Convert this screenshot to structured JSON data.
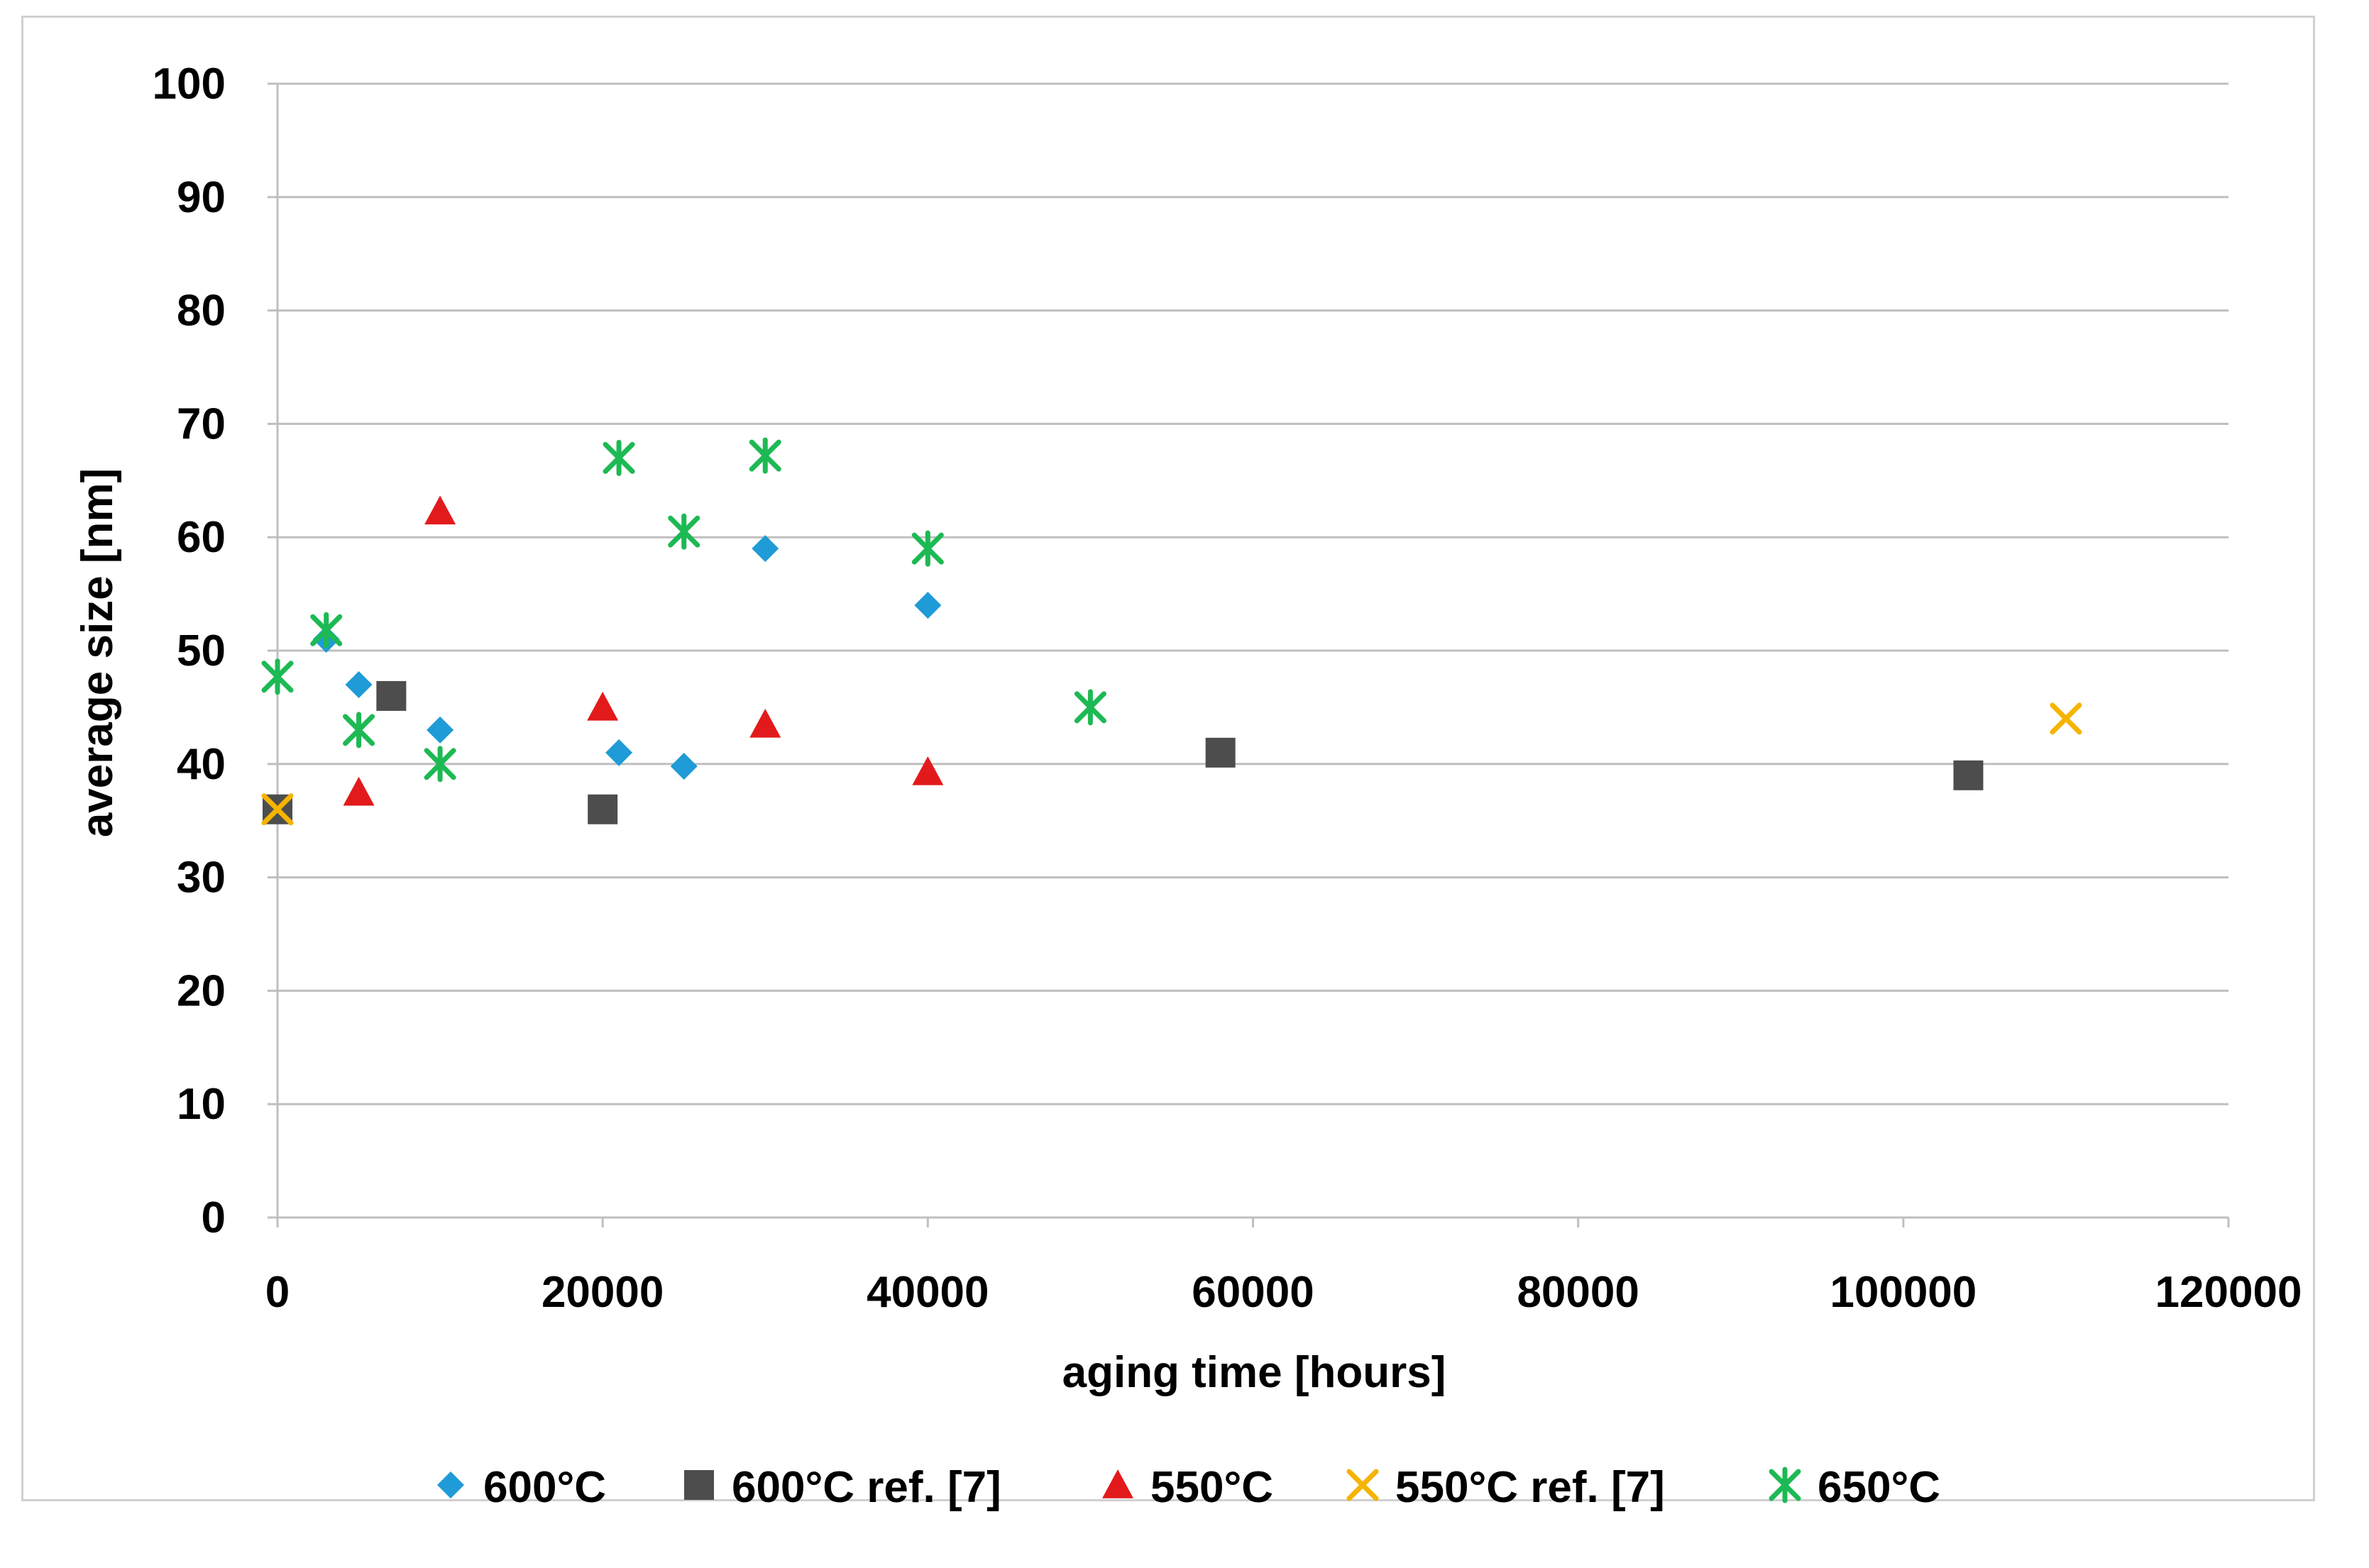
{
  "chart_data": {
    "type": "scatter",
    "title": "",
    "xlabel": "aging time [hours]",
    "ylabel": "average size [nm]",
    "xlim": [
      0,
      120000
    ],
    "ylim": [
      0,
      100
    ],
    "xticks": [
      "0",
      "20000",
      "40000",
      "60000",
      "80000",
      "100000",
      "120000"
    ],
    "yticks": [
      "0",
      "10",
      "20",
      "30",
      "40",
      "50",
      "60",
      "70",
      "80",
      "90",
      "100"
    ],
    "grid": "horizontal",
    "legend_position": "bottom",
    "series": [
      {
        "name": "600°C",
        "marker": "diamond",
        "color": "#1f9bd7",
        "points": [
          [
            0,
            36
          ],
          [
            3000,
            51
          ],
          [
            5000,
            47
          ],
          [
            10000,
            43
          ],
          [
            21000,
            41
          ],
          [
            25000,
            39.8
          ],
          [
            30000,
            59
          ],
          [
            40000,
            54
          ]
        ]
      },
      {
        "name": "600°C ref. [7]",
        "marker": "square",
        "color": "#4d4d4d",
        "points": [
          [
            0,
            36
          ],
          [
            7000,
            46
          ],
          [
            20000,
            36
          ],
          [
            58000,
            41
          ],
          [
            104000,
            39
          ]
        ]
      },
      {
        "name": "550°C",
        "marker": "triangle",
        "color": "#e31a1c",
        "points": [
          [
            5000,
            37.5
          ],
          [
            10000,
            62.3
          ],
          [
            20000,
            45
          ],
          [
            30000,
            43.5
          ],
          [
            40000,
            39.3
          ]
        ]
      },
      {
        "name": "550°C ref. [7]",
        "marker": "x",
        "color": "#f5b400",
        "points": [
          [
            0,
            36
          ],
          [
            110000,
            44
          ]
        ]
      },
      {
        "name": "650°C",
        "marker": "star",
        "color": "#1db954",
        "points": [
          [
            0,
            47.7
          ],
          [
            3000,
            51.8
          ],
          [
            5000,
            43
          ],
          [
            10000,
            40
          ],
          [
            21000,
            67
          ],
          [
            25000,
            60.5
          ],
          [
            30000,
            67.2
          ],
          [
            40000,
            59
          ],
          [
            50000,
            45
          ]
        ]
      }
    ]
  }
}
